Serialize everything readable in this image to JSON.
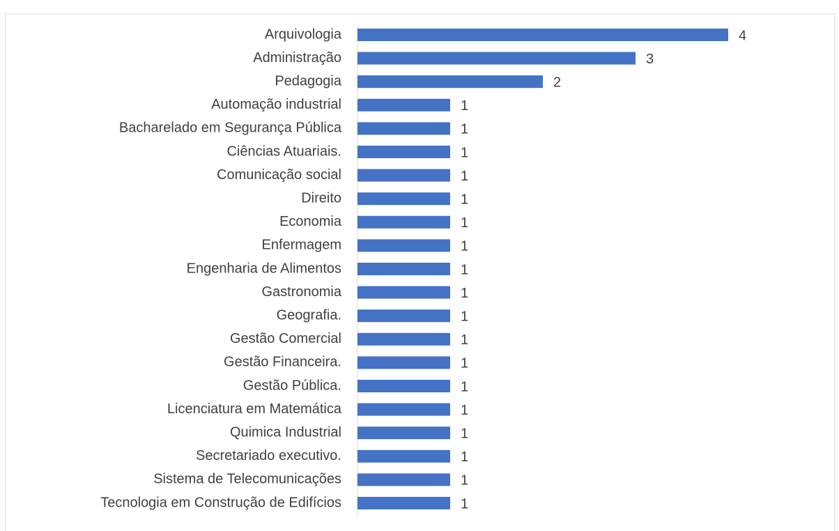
{
  "chart_data": {
    "type": "hbar",
    "categories": [
      "Arquivologia",
      "Administração",
      "Pedagogia",
      "Automação industrial",
      "Bacharelado em Segurança Pública",
      "Ciências Atuariais.",
      "Comunicação social",
      "Direito",
      "Economia",
      "Enfermagem",
      "Engenharia de Alimentos",
      "Gastronomia",
      "Geografia.",
      "Gestão Comercial",
      "Gestão Financeira.",
      "Gestão Pública.",
      "Licenciatura em Matemática",
      "Quimica Industrial",
      "Secretariado executivo.",
      "Sistema de Telecomunicações",
      "Tecnologia em Construção de Edifícios"
    ],
    "values": [
      4,
      3,
      2,
      1,
      1,
      1,
      1,
      1,
      1,
      1,
      1,
      1,
      1,
      1,
      1,
      1,
      1,
      1,
      1,
      1,
      1
    ],
    "color": "#4472c4"
  }
}
